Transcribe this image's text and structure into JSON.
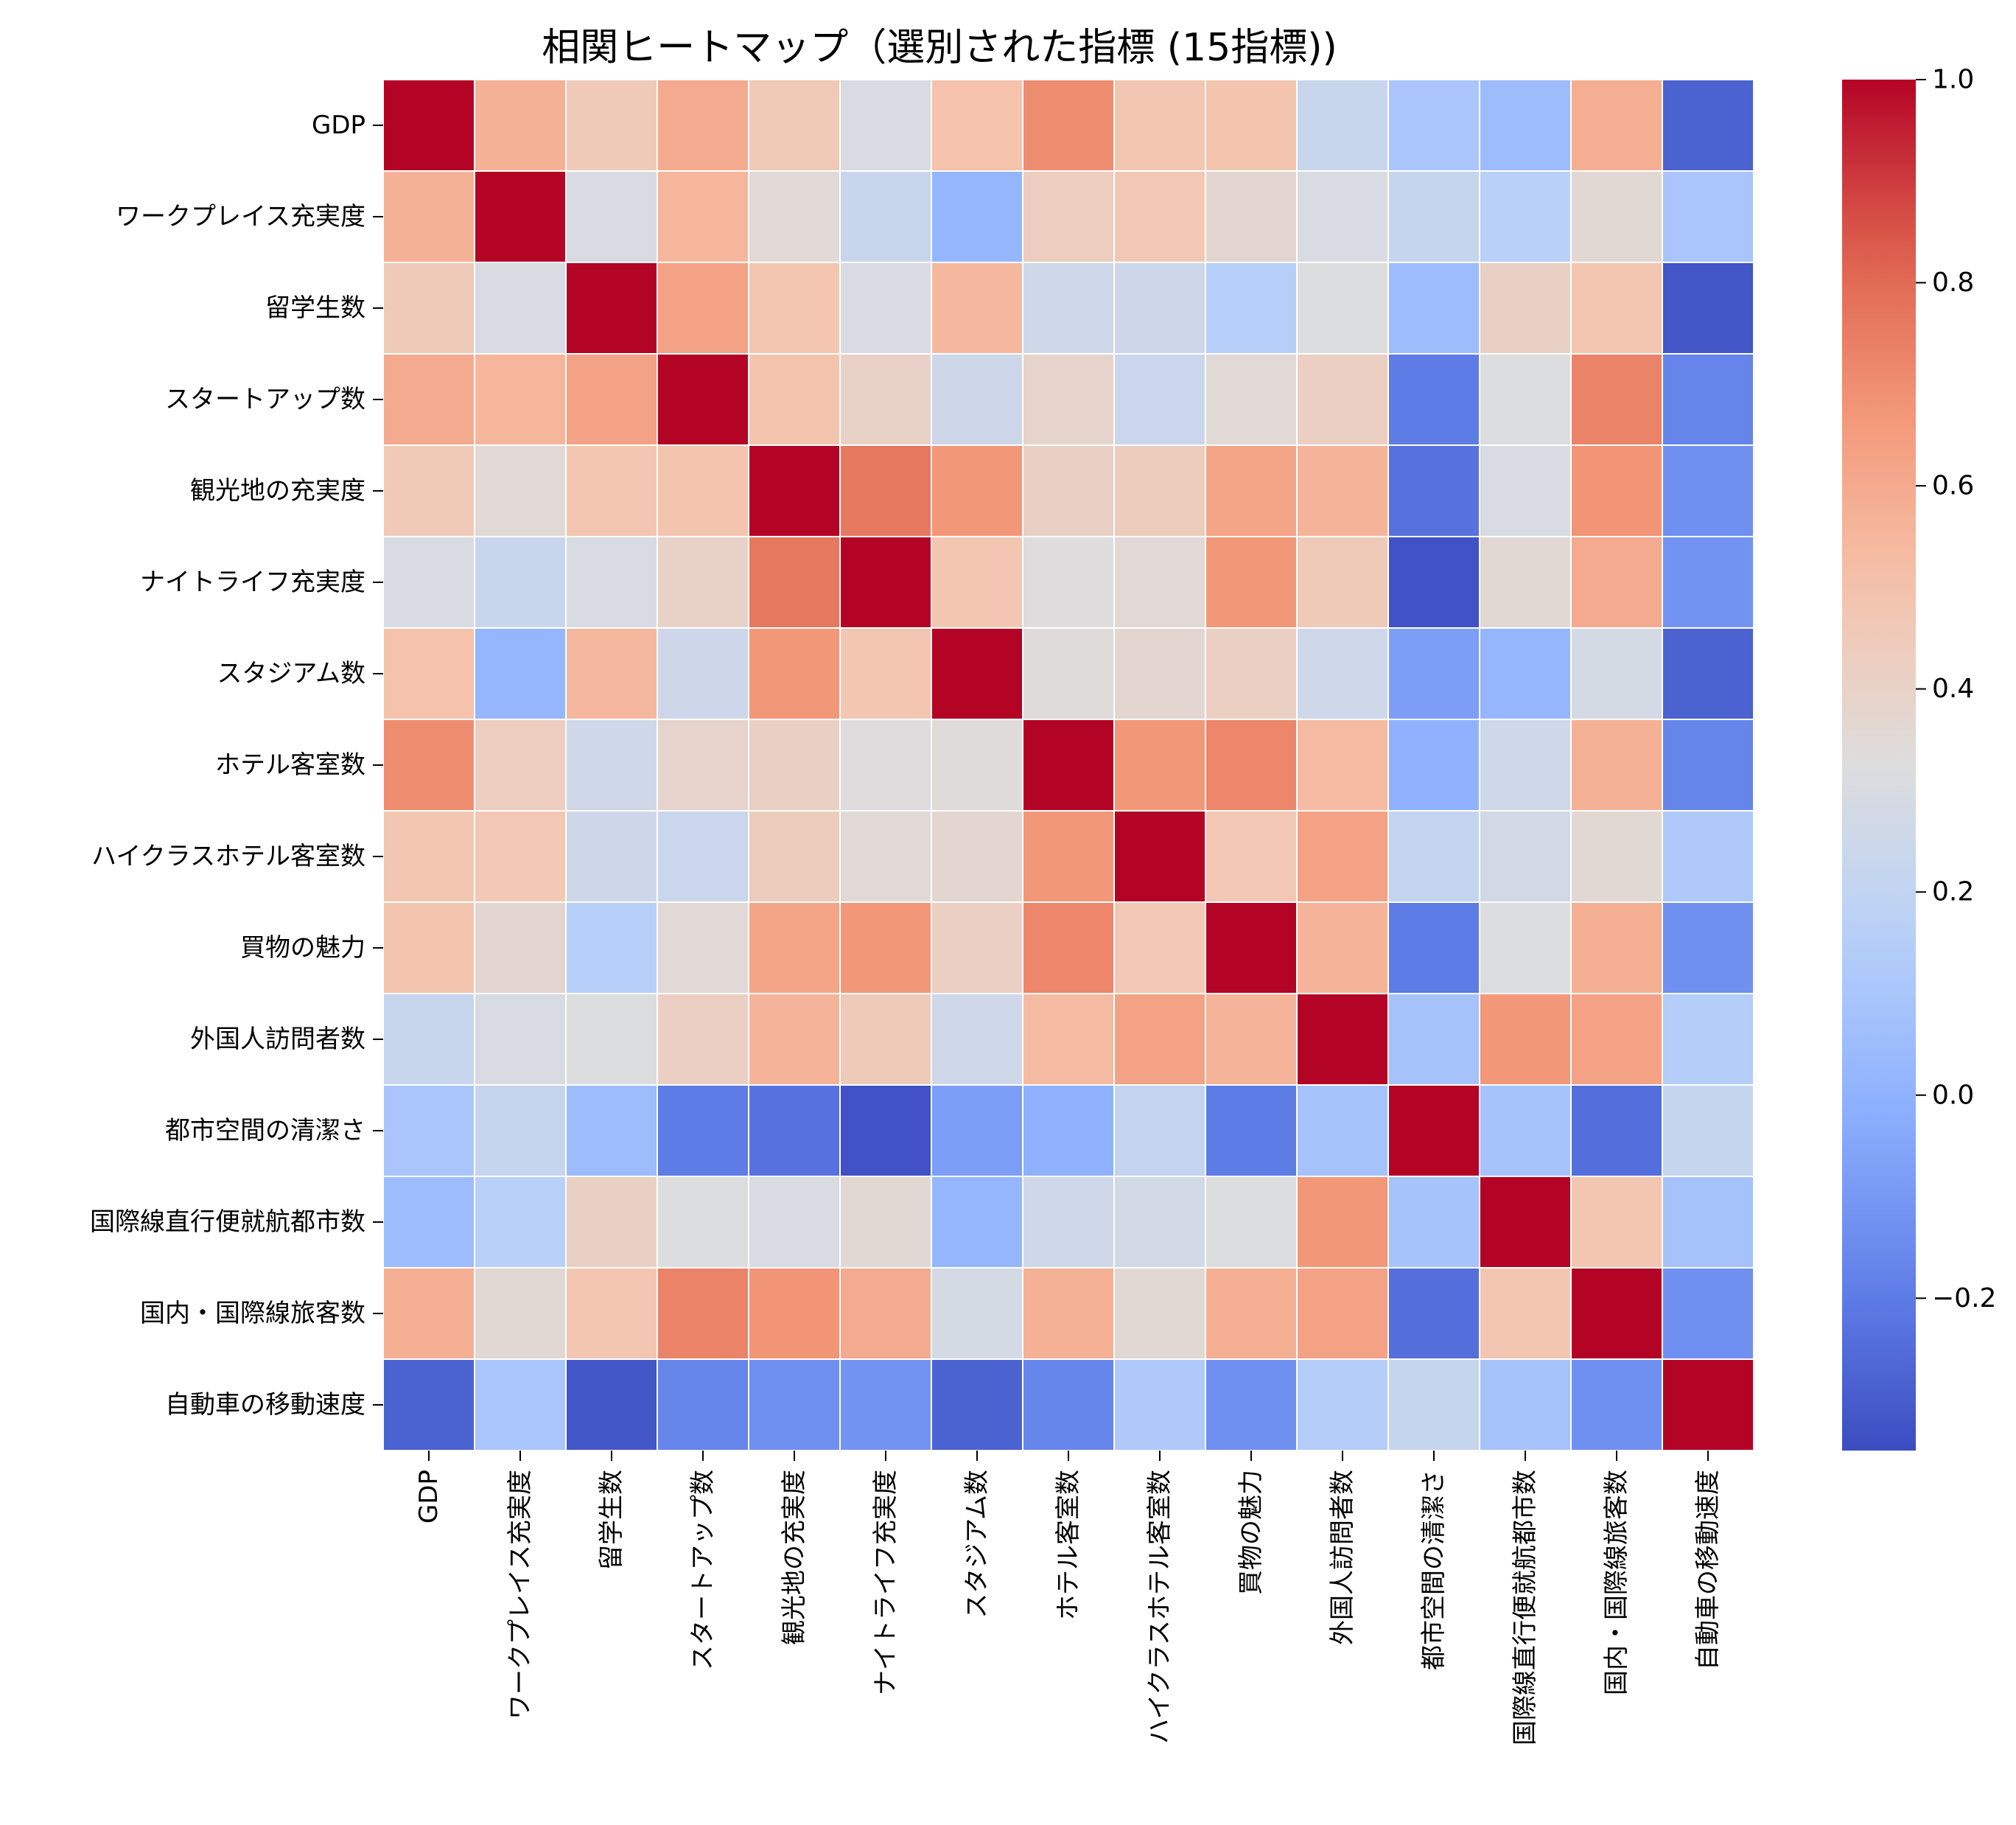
{
  "chart_data": {
    "type": "heatmap",
    "title": "相関ヒートマップ（選別された指標 (15指標))",
    "rows": [
      "GDP",
      "ワークプレイス充実度",
      "留学生数",
      "スタートアップ数",
      "観光地の充実度",
      "ナイトライフ充実度",
      "スタジアム数",
      "ホテル客室数",
      "ハイクラスホテル客室数",
      "買物の魅力",
      "外国人訪問者数",
      "都市空間の清潔さ",
      "国際線直行便就航都市数",
      "国内・国際線旅客数",
      "自動車の移動速度"
    ],
    "columns": [
      "GDP",
      "ワークプレイス充実度",
      "留学生数",
      "スタートアップ数",
      "観光地の充実度",
      "ナイトライフ充実度",
      "スタジアム数",
      "ホテル客室数",
      "ハイクラスホテル客室数",
      "買物の魅力",
      "外国人訪問者数",
      "都市空間の清潔さ",
      "国際線直行便就航都市数",
      "国内・国際線旅客数",
      "自動車の移動速度"
    ],
    "values": [
      [
        1.0,
        0.57,
        0.45,
        0.6,
        0.46,
        0.3,
        0.5,
        0.7,
        0.48,
        0.49,
        0.23,
        0.1,
        0.05,
        0.58,
        -0.28
      ],
      [
        0.57,
        1.0,
        0.3,
        0.55,
        0.35,
        0.23,
        0.02,
        0.43,
        0.47,
        0.37,
        0.3,
        0.22,
        0.16,
        0.36,
        0.1
      ],
      [
        0.45,
        0.3,
        1.0,
        0.63,
        0.48,
        0.3,
        0.54,
        0.26,
        0.25,
        0.15,
        0.32,
        0.05,
        0.41,
        0.48,
        -0.32
      ],
      [
        0.6,
        0.55,
        0.63,
        1.0,
        0.49,
        0.4,
        0.25,
        0.39,
        0.24,
        0.35,
        0.42,
        -0.2,
        0.32,
        0.73,
        -0.17
      ],
      [
        0.46,
        0.35,
        0.48,
        0.49,
        1.0,
        0.76,
        0.67,
        0.41,
        0.44,
        0.62,
        0.56,
        -0.23,
        0.3,
        0.68,
        -0.13
      ],
      [
        0.3,
        0.23,
        0.3,
        0.4,
        0.76,
        1.0,
        0.48,
        0.33,
        0.35,
        0.67,
        0.45,
        -0.33,
        0.36,
        0.6,
        -0.12
      ],
      [
        0.5,
        0.02,
        0.54,
        0.25,
        0.67,
        0.48,
        1.0,
        0.34,
        0.37,
        0.42,
        0.26,
        -0.08,
        0.02,
        0.28,
        -0.28
      ],
      [
        0.7,
        0.43,
        0.26,
        0.39,
        0.41,
        0.33,
        0.34,
        1.0,
        0.67,
        0.72,
        0.53,
        0.0,
        0.26,
        0.57,
        -0.17
      ],
      [
        0.48,
        0.47,
        0.25,
        0.24,
        0.44,
        0.35,
        0.37,
        0.67,
        1.0,
        0.47,
        0.63,
        0.21,
        0.27,
        0.36,
        0.12
      ],
      [
        0.49,
        0.37,
        0.15,
        0.35,
        0.62,
        0.67,
        0.42,
        0.72,
        0.47,
        1.0,
        0.56,
        -0.2,
        0.32,
        0.58,
        -0.13
      ],
      [
        0.23,
        0.3,
        0.32,
        0.42,
        0.56,
        0.45,
        0.26,
        0.53,
        0.63,
        0.56,
        1.0,
        0.08,
        0.67,
        0.63,
        0.14
      ],
      [
        0.1,
        0.22,
        0.05,
        -0.2,
        -0.23,
        -0.33,
        -0.08,
        0.0,
        0.21,
        -0.2,
        0.08,
        1.0,
        0.09,
        -0.24,
        0.22
      ],
      [
        0.05,
        0.16,
        0.41,
        0.32,
        0.3,
        0.36,
        0.02,
        0.26,
        0.27,
        0.32,
        0.67,
        0.09,
        1.0,
        0.48,
        0.08
      ],
      [
        0.58,
        0.36,
        0.48,
        0.73,
        0.68,
        0.6,
        0.28,
        0.57,
        0.36,
        0.58,
        0.63,
        -0.24,
        0.48,
        1.0,
        -0.13
      ],
      [
        -0.28,
        0.1,
        -0.32,
        -0.17,
        -0.13,
        -0.12,
        -0.28,
        -0.17,
        0.12,
        -0.13,
        0.14,
        0.22,
        0.08,
        -0.13,
        1.0
      ]
    ],
    "colormap": "coolwarm",
    "colorbar": {
      "range": [
        -0.35,
        1.0
      ],
      "ticks": [
        "−0.2",
        "0.0",
        "0.2",
        "0.4",
        "0.6",
        "0.8",
        "1.0"
      ]
    },
    "colors": {
      "low": "#3b4cc0",
      "mid": "#dddddd",
      "high": "#b40426",
      "grid": "#ffffff"
    }
  }
}
